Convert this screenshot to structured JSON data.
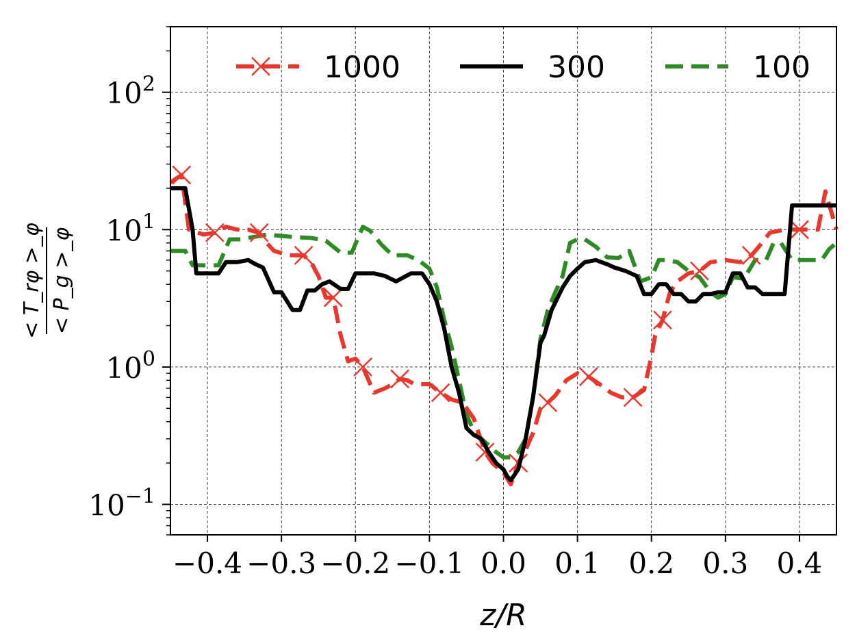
{
  "chart_data": {
    "type": "line",
    "xlabel": "z/R",
    "ylabel_numerator": "< T_rφ >_φ",
    "ylabel_denominator": "< P_g >_φ",
    "xlim": [
      -0.45,
      0.45
    ],
    "ylim": [
      0.06,
      300
    ],
    "yscale": "log",
    "grid": true,
    "legend_position": "top",
    "x_ticks": [
      -0.4,
      -0.3,
      -0.2,
      -0.1,
      0.0,
      0.1,
      0.2,
      0.3,
      0.4
    ],
    "x_tick_labels": [
      "−0.4",
      "−0.3",
      "−0.2",
      "−0.1",
      "0.0",
      "0.1",
      "0.2",
      "0.3",
      "0.4"
    ],
    "y_ticks": [
      0.1,
      1,
      10,
      100
    ],
    "y_tick_labels": [
      {
        "base": "10",
        "exp": "−1"
      },
      {
        "base": "10",
        "exp": "0"
      },
      {
        "base": "10",
        "exp": "1"
      },
      {
        "base": "10",
        "exp": "2"
      }
    ],
    "series": [
      {
        "name": "1000",
        "color": "#e8382e",
        "style": "dashed",
        "marker": "x",
        "x": [
          -0.45,
          -0.435,
          -0.425,
          -0.415,
          -0.405,
          -0.39,
          -0.375,
          -0.36,
          -0.345,
          -0.33,
          -0.32,
          -0.31,
          -0.29,
          -0.27,
          -0.26,
          -0.25,
          -0.24,
          -0.23,
          -0.22,
          -0.21,
          -0.2,
          -0.19,
          -0.175,
          -0.16,
          -0.15,
          -0.14,
          -0.13,
          -0.12,
          -0.1,
          -0.085,
          -0.07,
          -0.055,
          -0.04,
          -0.025,
          -0.015,
          0.0,
          0.01,
          0.02,
          0.03,
          0.04,
          0.05,
          0.06,
          0.07,
          0.085,
          0.1,
          0.115,
          0.13,
          0.145,
          0.16,
          0.175,
          0.19,
          0.2,
          0.205,
          0.215,
          0.225,
          0.235,
          0.25,
          0.265,
          0.28,
          0.3,
          0.32,
          0.335,
          0.345,
          0.36,
          0.38,
          0.4,
          0.425,
          0.435,
          0.45
        ],
        "y": [
          22,
          25,
          10,
          9.6,
          9.2,
          9.5,
          10.5,
          10,
          10,
          9.5,
          8,
          7,
          6.5,
          6.5,
          5.8,
          4.6,
          3.2,
          3.2,
          1.7,
          1.1,
          1.15,
          1.0,
          0.65,
          0.7,
          0.75,
          0.82,
          0.8,
          0.75,
          0.75,
          0.65,
          0.58,
          0.55,
          0.42,
          0.24,
          0.2,
          0.17,
          0.14,
          0.2,
          0.25,
          0.33,
          0.5,
          0.55,
          0.62,
          0.8,
          0.9,
          0.85,
          0.75,
          0.65,
          0.6,
          0.6,
          0.68,
          1.2,
          1.7,
          2.2,
          3.5,
          4.2,
          4.8,
          5,
          5.8,
          6,
          5.8,
          6.5,
          7.5,
          9.5,
          10,
          10,
          10,
          19,
          10
        ]
      },
      {
        "name": "300",
        "color": "#000000",
        "style": "solid",
        "marker": "",
        "x": [
          -0.45,
          -0.43,
          -0.42,
          -0.415,
          -0.4,
          -0.385,
          -0.375,
          -0.36,
          -0.345,
          -0.335,
          -0.325,
          -0.31,
          -0.3,
          -0.285,
          -0.275,
          -0.265,
          -0.255,
          -0.245,
          -0.235,
          -0.22,
          -0.21,
          -0.2,
          -0.19,
          -0.175,
          -0.16,
          -0.145,
          -0.125,
          -0.11,
          -0.1,
          -0.09,
          -0.08,
          -0.07,
          -0.06,
          -0.05,
          -0.04,
          -0.03,
          -0.02,
          -0.01,
          0.0,
          0.005,
          0.01,
          0.02,
          0.03,
          0.04,
          0.05,
          0.055,
          0.065,
          0.08,
          0.09,
          0.1,
          0.11,
          0.125,
          0.14,
          0.15,
          0.165,
          0.18,
          0.19,
          0.2,
          0.21,
          0.22,
          0.23,
          0.24,
          0.25,
          0.26,
          0.27,
          0.28,
          0.29,
          0.3,
          0.31,
          0.32,
          0.33,
          0.34,
          0.35,
          0.36,
          0.37,
          0.38,
          0.39,
          0.4,
          0.41,
          0.42,
          0.43,
          0.435,
          0.44,
          0.45
        ],
        "y": [
          20,
          20,
          10,
          4.8,
          4.8,
          4.8,
          5.8,
          5.8,
          6.0,
          5.6,
          5.3,
          3.5,
          3.5,
          2.6,
          2.6,
          3.6,
          3.6,
          4.0,
          4.2,
          3.7,
          3.7,
          4.8,
          4.8,
          4.8,
          4.6,
          4.2,
          4.8,
          4.8,
          4.0,
          3.0,
          1.9,
          1.0,
          0.65,
          0.36,
          0.32,
          0.3,
          0.24,
          0.2,
          0.18,
          0.16,
          0.15,
          0.18,
          0.3,
          0.6,
          1.5,
          1.7,
          2.6,
          3.8,
          4.6,
          5.2,
          5.8,
          6.0,
          5.6,
          5.3,
          5.0,
          4.6,
          3.4,
          3.4,
          4.0,
          4.0,
          3.4,
          3.4,
          3.0,
          3.0,
          3.4,
          3.4,
          3.5,
          3.5,
          4.8,
          4.8,
          3.8,
          3.8,
          3.4,
          3.4,
          3.4,
          3.4,
          15,
          15,
          15,
          15,
          15,
          15,
          15,
          15
        ],
        "x_dummy_end": null
      },
      {
        "name": "100",
        "color": "#2e8a24",
        "style": "dashed",
        "marker": "",
        "x": [
          -0.45,
          -0.43,
          -0.42,
          -0.41,
          -0.4,
          -0.385,
          -0.37,
          -0.355,
          -0.34,
          -0.32,
          -0.3,
          -0.28,
          -0.26,
          -0.24,
          -0.22,
          -0.205,
          -0.19,
          -0.18,
          -0.165,
          -0.15,
          -0.13,
          -0.115,
          -0.1,
          -0.09,
          -0.08,
          -0.07,
          -0.06,
          -0.05,
          -0.04,
          -0.03,
          -0.02,
          -0.01,
          0.0,
          0.01,
          0.02,
          0.03,
          0.04,
          0.05,
          0.06,
          0.07,
          0.08,
          0.09,
          0.1,
          0.11,
          0.125,
          0.14,
          0.155,
          0.17,
          0.185,
          0.2,
          0.21,
          0.22,
          0.235,
          0.25,
          0.265,
          0.28,
          0.29,
          0.3,
          0.31,
          0.325,
          0.34,
          0.355,
          0.365,
          0.375,
          0.39,
          0.4,
          0.41,
          0.42,
          0.43,
          0.44,
          0.45
        ],
        "y": [
          7.0,
          7.0,
          5.5,
          5.5,
          5.5,
          5.5,
          8.5,
          8.5,
          8.8,
          9.2,
          9.0,
          8.8,
          8.7,
          8.3,
          6.8,
          6.8,
          10.5,
          9.8,
          7.8,
          6.5,
          6.5,
          6.0,
          5.2,
          3.8,
          2.2,
          1.4,
          0.8,
          0.45,
          0.34,
          0.3,
          0.27,
          0.24,
          0.22,
          0.22,
          0.24,
          0.3,
          0.6,
          1.6,
          2.6,
          3.5,
          4.6,
          8.0,
          8.5,
          8.5,
          7.5,
          6.3,
          6.2,
          7.0,
          4.2,
          4.5,
          6.0,
          6.0,
          5.8,
          5.0,
          4.5,
          3.5,
          3.2,
          3.4,
          4.5,
          4.4,
          6.0,
          6.0,
          8.0,
          8.0,
          6.0,
          6.0,
          6.0,
          6.0,
          6.0,
          7.2,
          8.0
        ]
      }
    ]
  }
}
